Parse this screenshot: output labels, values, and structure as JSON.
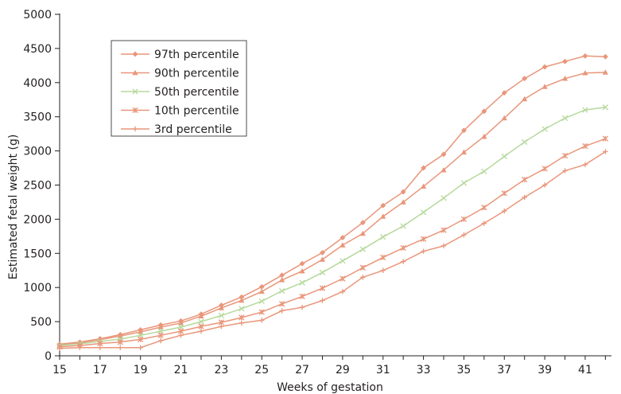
{
  "chart_data": {
    "type": "line",
    "title": "",
    "xlabel": "Weeks of gestation",
    "ylabel": "Estimated fetal weight (g)",
    "xlim": [
      15,
      42.3
    ],
    "ylim": [
      0,
      5000
    ],
    "x_ticks": [
      15,
      17,
      19,
      21,
      23,
      25,
      27,
      29,
      31,
      33,
      35,
      37,
      39,
      41
    ],
    "y_ticks": [
      0,
      500,
      1000,
      1500,
      2000,
      2500,
      3000,
      3500,
      4000,
      4500,
      5000
    ],
    "x_tick_labels": [
      "15",
      "17",
      "19",
      "21",
      "23",
      "25",
      "27",
      "29",
      "31",
      "33",
      "35",
      "37",
      "39",
      "41"
    ],
    "y_tick_labels": [
      "0",
      "500",
      "1000",
      "1500",
      "2000",
      "2500",
      "3000",
      "3500",
      "4000",
      "4500",
      "5000"
    ],
    "grid": false,
    "legend_position": "top-left",
    "x": [
      15,
      16,
      17,
      18,
      19,
      20,
      21,
      22,
      23,
      24,
      25,
      26,
      27,
      28,
      29,
      30,
      31,
      32,
      33,
      34,
      35,
      36,
      37,
      38,
      39,
      40,
      41,
      42
    ],
    "series": [
      {
        "name": "97th percentile",
        "color": "#e9967a",
        "marker": "diamond",
        "values": [
          170,
          200,
          250,
          310,
          380,
          450,
          510,
          610,
          740,
          860,
          1010,
          1180,
          1350,
          1510,
          1730,
          1950,
          2200,
          2400,
          2750,
          2950,
          3300,
          3580,
          3850,
          4060,
          4230,
          4310,
          4390,
          4380
        ]
      },
      {
        "name": "90th percentile",
        "color": "#e9967a",
        "marker": "triangle",
        "values": [
          160,
          190,
          235,
          290,
          350,
          420,
          480,
          580,
          700,
          810,
          940,
          1110,
          1240,
          1410,
          1620,
          1790,
          2040,
          2250,
          2480,
          2720,
          2980,
          3210,
          3480,
          3760,
          3940,
          4060,
          4140,
          4150
        ]
      },
      {
        "name": "50th percentile",
        "color": "#b5d99c",
        "marker": "cross",
        "values": [
          150,
          175,
          210,
          245,
          300,
          360,
          420,
          500,
          590,
          690,
          800,
          950,
          1070,
          1220,
          1390,
          1560,
          1740,
          1900,
          2100,
          2310,
          2530,
          2700,
          2920,
          3130,
          3320,
          3480,
          3600,
          3640
        ]
      },
      {
        "name": "10th percentile",
        "color": "#e9967a",
        "marker": "star",
        "values": [
          130,
          150,
          180,
          200,
          240,
          300,
          360,
          430,
          490,
          560,
          640,
          760,
          870,
          990,
          1130,
          1290,
          1440,
          1580,
          1710,
          1840,
          2000,
          2170,
          2380,
          2580,
          2740,
          2930,
          3070,
          3180
        ]
      },
      {
        "name": "3rd percentile",
        "color": "#e9967a",
        "marker": "plus",
        "values": [
          110,
          120,
          120,
          120,
          120,
          220,
          300,
          360,
          430,
          480,
          520,
          660,
          710,
          810,
          940,
          1150,
          1250,
          1380,
          1530,
          1610,
          1770,
          1940,
          2120,
          2320,
          2500,
          2710,
          2800,
          2990
        ]
      }
    ]
  }
}
